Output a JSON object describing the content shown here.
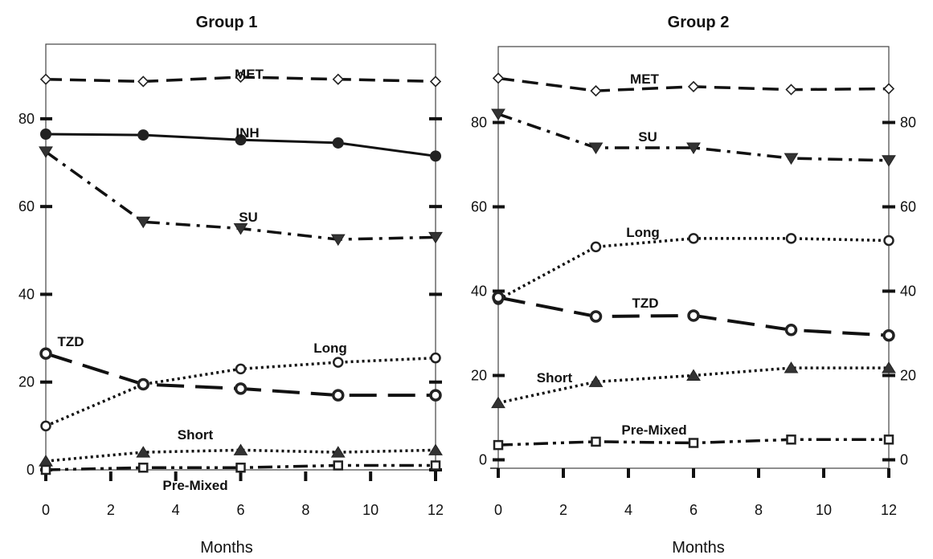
{
  "chart_data": [
    {
      "type": "line",
      "title": "Group 1",
      "xlabel": "Months",
      "ylabel": "",
      "x": [
        0,
        3,
        6,
        9,
        12
      ],
      "xlim": [
        0,
        12
      ],
      "ylim": [
        0,
        97
      ],
      "xticks": [
        "0",
        "2",
        "4",
        "6",
        "8",
        "10",
        "12"
      ],
      "yticks": [
        "0",
        "20",
        "40",
        "60",
        "80"
      ],
      "series": [
        {
          "name": "MET",
          "values": [
            89,
            88.5,
            89.5,
            89,
            88.5
          ],
          "dash": "dash",
          "marker": "diamond"
        },
        {
          "name": "INH",
          "values": [
            76.5,
            76.3,
            75.2,
            74.5,
            71.5
          ],
          "dash": "solid",
          "marker": "circle-filled"
        },
        {
          "name": "SU",
          "values": [
            72.5,
            56.5,
            55,
            52.5,
            53
          ],
          "dash": "dashdot",
          "marker": "triangle-down"
        },
        {
          "name": "TZD",
          "values": [
            26.5,
            19.5,
            18.5,
            17,
            17
          ],
          "dash": "longdash",
          "marker": "circle-thick"
        },
        {
          "name": "Long",
          "values": [
            10,
            19.5,
            23,
            24.5,
            25.5
          ],
          "dash": "dot",
          "marker": "circle-open"
        },
        {
          "name": "Short",
          "values": [
            2,
            4,
            4.5,
            4,
            4.5
          ],
          "dash": "dot",
          "marker": "triangle-up"
        },
        {
          "name": "Pre-Mixed",
          "values": [
            0,
            0.5,
            0.5,
            1,
            1
          ],
          "dash": "dashdotdot",
          "marker": "square-open"
        }
      ]
    },
    {
      "type": "line",
      "title": "Group 2",
      "xlabel": "Months",
      "ylabel": "",
      "x": [
        0,
        3,
        6,
        9,
        12
      ],
      "xlim": [
        0,
        12
      ],
      "ylim": [
        -2,
        98
      ],
      "xticks": [
        "0",
        "2",
        "4",
        "6",
        "8",
        "10",
        "12"
      ],
      "yticks": [
        "0",
        "20",
        "40",
        "60",
        "80"
      ],
      "series": [
        {
          "name": "MET",
          "values": [
            90.5,
            87.5,
            88.5,
            87.8,
            88
          ],
          "dash": "dash",
          "marker": "diamond"
        },
        {
          "name": "SU",
          "values": [
            82,
            74,
            74,
            71.5,
            71
          ],
          "dash": "dashdot",
          "marker": "triangle-down"
        },
        {
          "name": "Long",
          "values": [
            38,
            50.5,
            52.5,
            52.5,
            52
          ],
          "dash": "dot",
          "marker": "circle-open"
        },
        {
          "name": "TZD",
          "values": [
            38.5,
            34,
            34.2,
            30.8,
            29.5
          ],
          "dash": "longdash",
          "marker": "circle-thick"
        },
        {
          "name": "Short",
          "values": [
            13.5,
            18.5,
            20,
            21.8,
            21.8
          ],
          "dash": "dot",
          "marker": "triangle-up"
        },
        {
          "name": "Pre-Mixed",
          "values": [
            3.5,
            4.3,
            4,
            4.8,
            4.8
          ],
          "dash": "dashdotdot",
          "marker": "square-open"
        }
      ]
    }
  ]
}
